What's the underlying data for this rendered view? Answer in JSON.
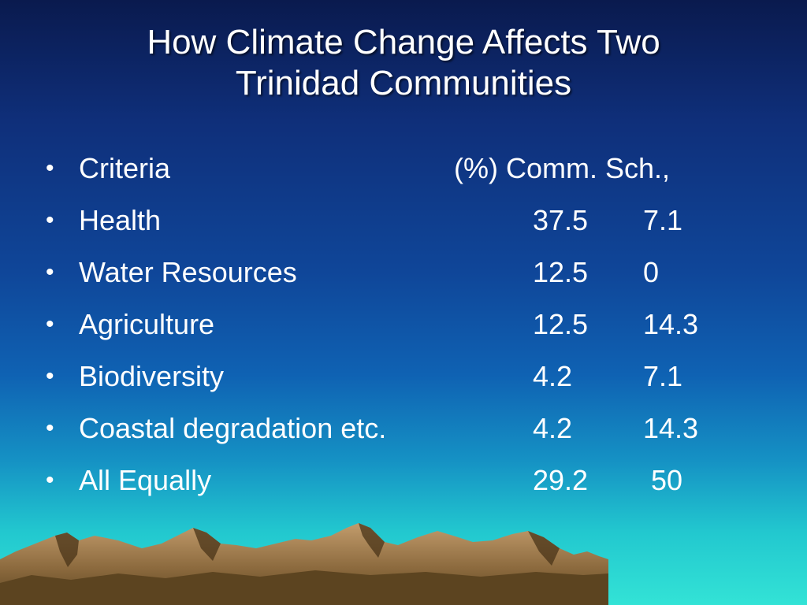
{
  "slide": {
    "title_line1": "How Climate Change Affects Two",
    "title_line2": "Trinidad Communities",
    "bullet_glyph": "•",
    "header": {
      "label": "Criteria",
      "columns": "(%) Comm. Sch.,"
    },
    "rows": [
      {
        "label": "Health",
        "comm": "37.5",
        "sch": "7.1"
      },
      {
        "label": "Water Resources",
        "comm": "12.5",
        "sch": "0"
      },
      {
        "label": "Agriculture",
        "comm": "12.5",
        "sch": "14.3"
      },
      {
        "label": "Biodiversity",
        "comm": "4.2",
        "sch": "7.1"
      },
      {
        "label": "Coastal degradation etc.",
        "comm": "4.2",
        "sch": "14.3"
      },
      {
        "label": "All Equally",
        "comm": "29.2",
        "sch": "50"
      }
    ]
  },
  "colors": {
    "sky_top": "#0a1a4e",
    "sea": "#33e3d6",
    "mountain_light": "#b8956a",
    "mountain_dark": "#5c4420",
    "text": "#ffffff"
  }
}
